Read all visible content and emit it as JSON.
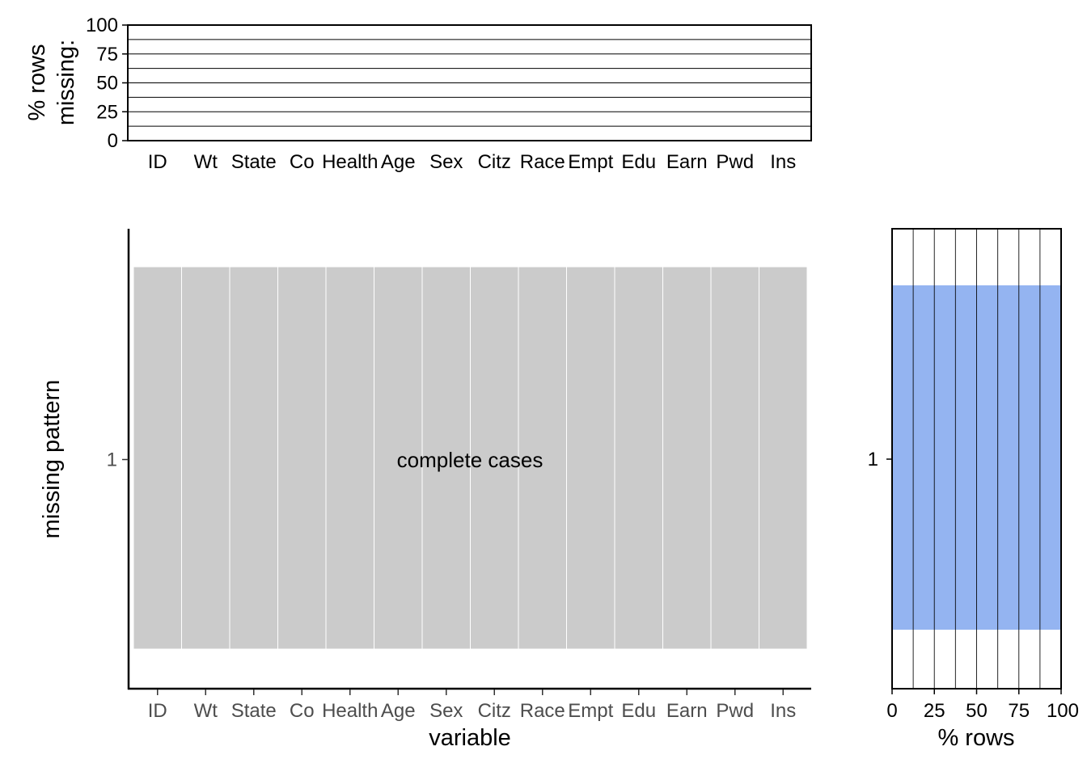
{
  "chart_data": [
    {
      "panel": "top",
      "type": "bar",
      "ylabel_lines": [
        "% rows",
        "missing:"
      ],
      "ylim": [
        0,
        100
      ],
      "yticks": [
        0,
        25,
        50,
        75,
        100
      ],
      "grid": true,
      "categories": [
        "ID",
        "Wt",
        "State",
        "Co",
        "Health",
        "Age",
        "Sex",
        "Citz",
        "Race",
        "Empt",
        "Edu",
        "Earn",
        "Pwd",
        "Ins"
      ],
      "values": [
        0,
        0,
        0,
        0,
        0,
        0,
        0,
        0,
        0,
        0,
        0,
        0,
        0,
        0
      ]
    },
    {
      "panel": "main",
      "type": "heatmap",
      "xlabel": "variable",
      "ylabel": "missing pattern",
      "categories": [
        "ID",
        "Wt",
        "State",
        "Co",
        "Health",
        "Age",
        "Sex",
        "Citz",
        "Race",
        "Empt",
        "Edu",
        "Earn",
        "Pwd",
        "Ins"
      ],
      "patterns": [
        "1"
      ],
      "missing": [
        [
          false,
          false,
          false,
          false,
          false,
          false,
          false,
          false,
          false,
          false,
          false,
          false,
          false,
          false
        ]
      ],
      "annotation": "complete cases",
      "fill_color": "#cbcbcb"
    },
    {
      "panel": "right",
      "type": "bar",
      "orientation": "horizontal",
      "xlabel": "% rows",
      "xlim": [
        0,
        100
      ],
      "xticks": [
        0,
        25,
        50,
        75,
        100
      ],
      "grid": true,
      "categories": [
        "1"
      ],
      "values": [
        100
      ],
      "fill_color": "#94b4f1"
    }
  ]
}
